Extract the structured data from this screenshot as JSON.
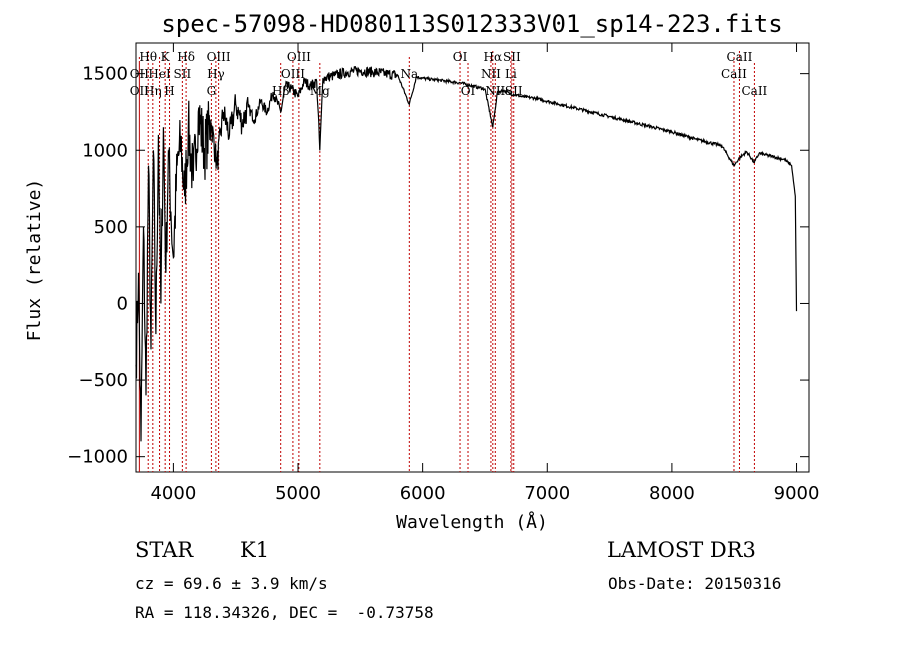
{
  "chart_data": {
    "type": "line",
    "title": "spec-57098-HD080113S012333V01_sp14-223.fits",
    "xlabel": "Wavelength (Å)",
    "ylabel": "Flux (relative)",
    "xlim": [
      3700,
      9100
    ],
    "ylim": [
      -1100,
      1700
    ],
    "xticks": [
      4000,
      5000,
      6000,
      7000,
      8000,
      9000
    ],
    "yticks": [
      -1000,
      -500,
      0,
      500,
      1000,
      1500
    ],
    "series": [
      {
        "name": "flux",
        "x": [
          3700,
          3720,
          3740,
          3760,
          3780,
          3800,
          3820,
          3840,
          3860,
          3880,
          3900,
          3920,
          3940,
          3960,
          3980,
          4000,
          4030,
          4060,
          4090,
          4120,
          4160,
          4200,
          4250,
          4300,
          4350,
          4400,
          4450,
          4500,
          4550,
          4600,
          4650,
          4700,
          4750,
          4800,
          4861,
          4900,
          4950,
          5000,
          5050,
          5100,
          5150,
          5175,
          5200,
          5300,
          5400,
          5500,
          5600,
          5700,
          5800,
          5893,
          5950,
          6000,
          6100,
          6200,
          6300,
          6400,
          6500,
          6563,
          6600,
          6650,
          6700,
          6800,
          6900,
          7000,
          7200,
          7400,
          7600,
          7800,
          8000,
          8200,
          8400,
          8498,
          8542,
          8600,
          8662,
          8700,
          8800,
          8900,
          8960,
          8990,
          9000
        ],
        "y": [
          -400,
          200,
          -900,
          500,
          -600,
          900,
          -300,
          1000,
          -200,
          1100,
          0,
          1150,
          200,
          1000,
          600,
          300,
          900,
          1050,
          700,
          1150,
          800,
          1250,
          1000,
          1200,
          900,
          1250,
          1100,
          1300,
          1180,
          1280,
          1200,
          1320,
          1250,
          1380,
          1250,
          1420,
          1400,
          1350,
          1450,
          1420,
          1450,
          1000,
          1470,
          1490,
          1510,
          1520,
          1510,
          1500,
          1490,
          1300,
          1480,
          1470,
          1460,
          1450,
          1440,
          1420,
          1400,
          1150,
          1380,
          1390,
          1370,
          1350,
          1340,
          1320,
          1280,
          1240,
          1200,
          1160,
          1120,
          1070,
          1030,
          900,
          950,
          990,
          920,
          980,
          960,
          940,
          900,
          700,
          -50
        ]
      }
    ],
    "line_markers": [
      {
        "label": "Hθ",
        "x": 3798,
        "row": 0
      },
      {
        "label": "OII",
        "x": 3727,
        "row": 1
      },
      {
        "label": "OII",
        "x": 3727,
        "row": 2
      },
      {
        "label": "Hη",
        "x": 3835,
        "row": 2
      },
      {
        "label": "HeI",
        "x": 3889,
        "row": 1
      },
      {
        "label": "K",
        "x": 3934,
        "row": 0
      },
      {
        "label": "H",
        "x": 3969,
        "row": 2
      },
      {
        "label": "SII",
        "x": 4072,
        "row": 1
      },
      {
        "label": "Hδ",
        "x": 4102,
        "row": 0
      },
      {
        "label": "OIII",
        "x": 4363,
        "row": 0
      },
      {
        "label": "Hγ",
        "x": 4341,
        "row": 1
      },
      {
        "label": "G",
        "x": 4305,
        "row": 2
      },
      {
        "label": "OIII",
        "x": 5007,
        "row": 0
      },
      {
        "label": "OIII",
        "x": 4959,
        "row": 1
      },
      {
        "label": "Hβ",
        "x": 4861,
        "row": 2
      },
      {
        "label": "Mg",
        "x": 5175,
        "row": 2
      },
      {
        "label": "Na",
        "x": 5893,
        "row": 1
      },
      {
        "label": "OI",
        "x": 6300,
        "row": 0
      },
      {
        "label": "OI",
        "x": 6364,
        "row": 2
      },
      {
        "label": "Hα",
        "x": 6563,
        "row": 0
      },
      {
        "label": "SII",
        "x": 6716,
        "row": 0
      },
      {
        "label": "NII",
        "x": 6548,
        "row": 1
      },
      {
        "label": "Li",
        "x": 6708,
        "row": 1
      },
      {
        "label": "NII",
        "x": 6583,
        "row": 2
      },
      {
        "label": "SII",
        "x": 6731,
        "row": 2
      },
      {
        "label": "CaII",
        "x": 8542,
        "row": 0
      },
      {
        "label": "CaII",
        "x": 8498,
        "row": 1
      },
      {
        "label": "CaII",
        "x": 8662,
        "row": 2
      }
    ],
    "line_colors": {
      "spectrum": "#000000",
      "marker": "#c00000"
    }
  },
  "info": {
    "obj_class": "STAR",
    "subclass": "K1",
    "survey": "LAMOST DR3",
    "redshift": "cz = 69.6 ± 3.9 km/s",
    "obs_date": "Obs-Date: 20150316",
    "coords": "RA = 118.34326, DEC =  -0.73758"
  }
}
